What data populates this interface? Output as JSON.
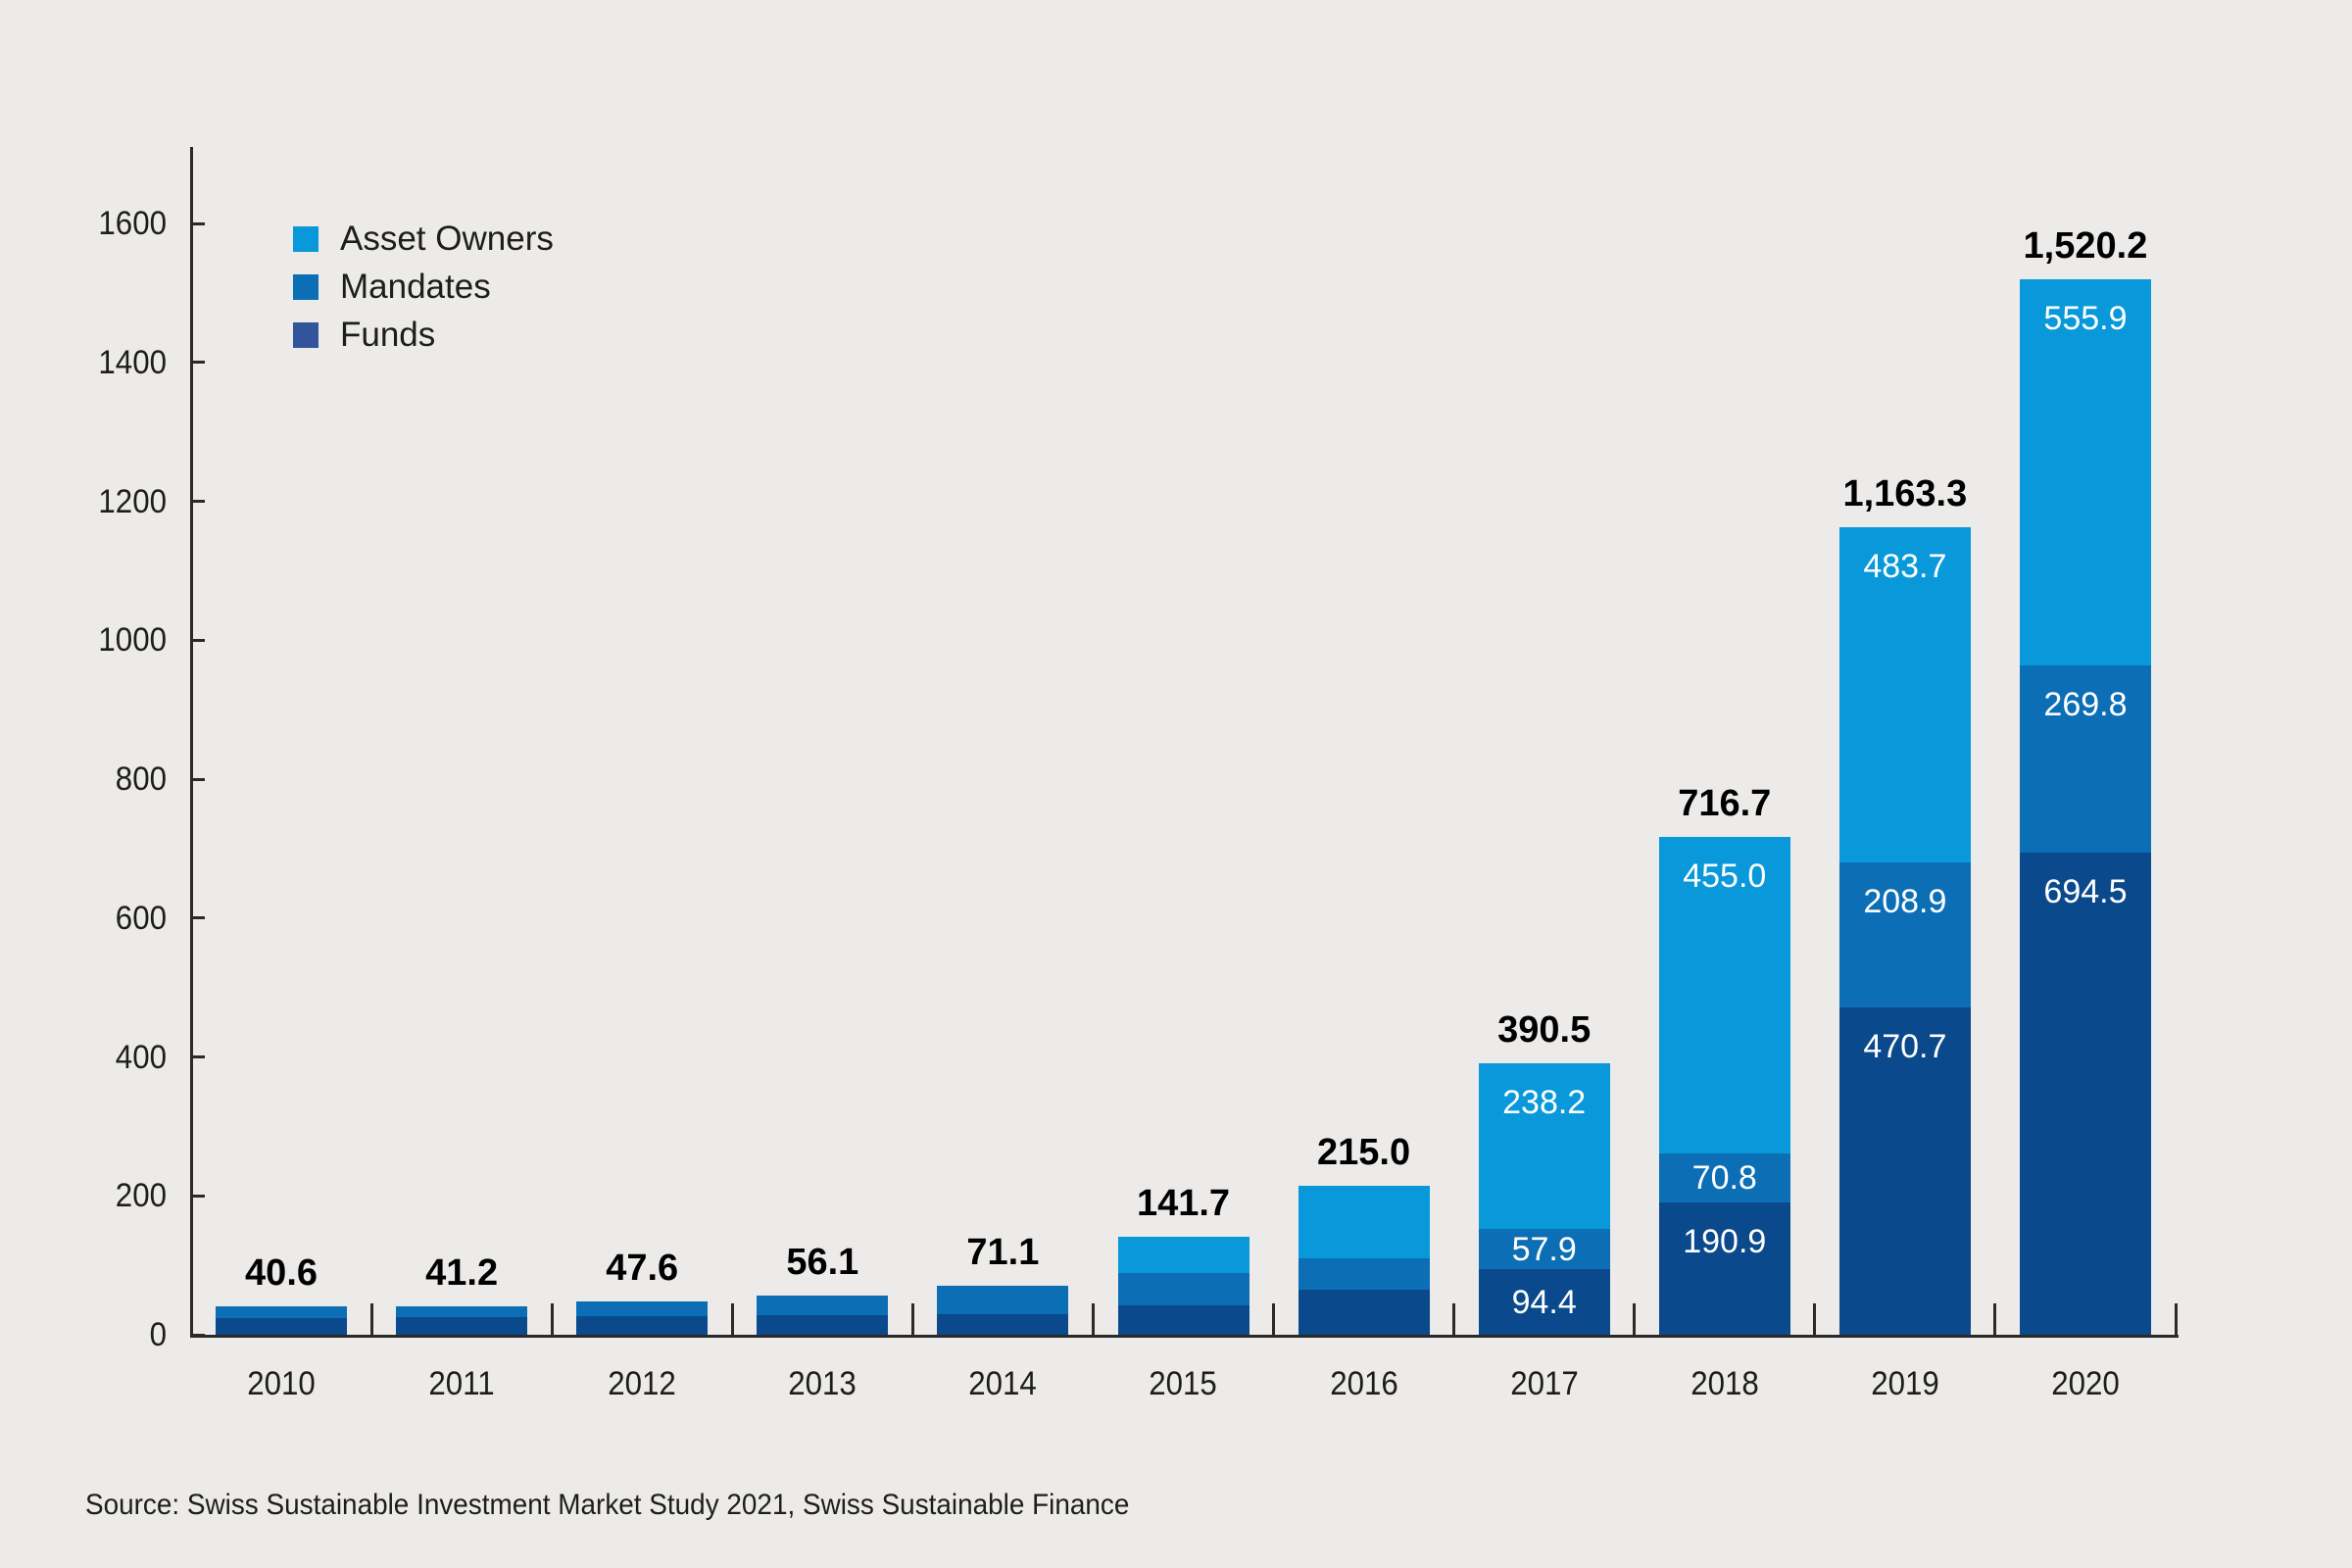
{
  "background_color": "#ECEBE9",
  "axis_color": "#2B2A28",
  "text_color": "#1D1D1B",
  "source": {
    "text": "Source: Swiss Sustainable Investment Market Study 2021, Swiss Sustainable Finance"
  },
  "chart_data": {
    "type": "bar",
    "stacked": true,
    "title": "",
    "xlabel": "",
    "ylabel": "",
    "ylim": [
      0,
      1600
    ],
    "y_ticks": [
      0,
      200,
      400,
      600,
      800,
      1000,
      1200,
      1400,
      1600
    ],
    "grid": false,
    "legend_position": "top-left",
    "categories": [
      "2010",
      "2011",
      "2012",
      "2013",
      "2014",
      "2015",
      "2016",
      "2017",
      "2018",
      "2019",
      "2020"
    ],
    "totals": [
      "40.6",
      "41.2",
      "47.6",
      "56.1",
      "71.1",
      "141.7",
      "215.0",
      "390.5",
      "716.7",
      "1,163.3",
      "1,520.2"
    ],
    "series": [
      {
        "name": "Asset Owners",
        "color": "#0999DA",
        "swatch_color": "#0999DA",
        "values": [
          0,
          0,
          0,
          0,
          0,
          53.3,
          105.4,
          238.2,
          455.0,
          483.7,
          555.9
        ],
        "labels": [
          "",
          "",
          "",
          "",
          "",
          "",
          "",
          "238.2",
          "455.0",
          "483.7",
          "555.9"
        ]
      },
      {
        "name": "Mandates",
        "color": "#0C6FB6",
        "swatch_color": "#0C6FB6",
        "values": [
          17.0,
          16.5,
          21.3,
          28.5,
          41.0,
          46.3,
          45.0,
          57.9,
          70.8,
          208.9,
          269.8
        ],
        "labels": [
          "",
          "",
          "",
          "",
          "",
          "",
          "",
          "57.9",
          "70.8",
          "208.9",
          "269.8"
        ]
      },
      {
        "name": "Funds",
        "color": "#0A4A8C",
        "swatch_color": "#31549B",
        "values": [
          23.6,
          24.7,
          26.3,
          27.6,
          30.1,
          42.1,
          64.6,
          94.4,
          190.9,
          470.7,
          694.5
        ],
        "labels": [
          "",
          "",
          "",
          "",
          "",
          "",
          "",
          "94.4",
          "190.9",
          "470.7",
          "694.5"
        ]
      }
    ]
  }
}
